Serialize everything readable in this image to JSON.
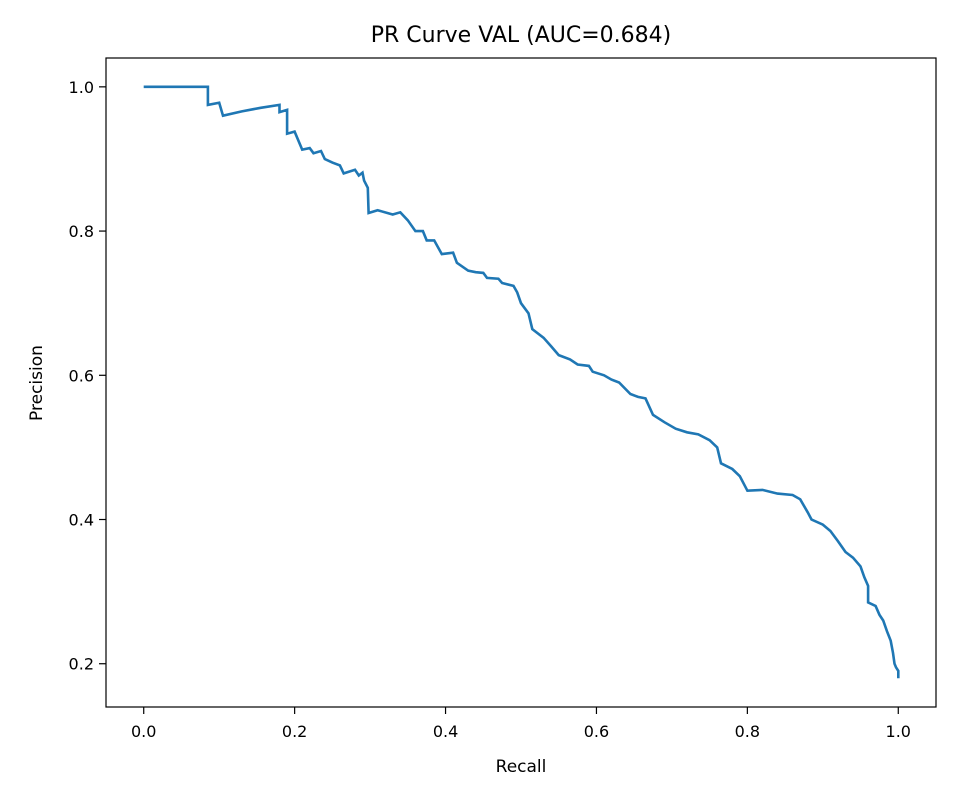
{
  "chart_data": {
    "type": "line",
    "title": "PR Curve VAL (AUC=0.684)",
    "xlabel": "Recall",
    "ylabel": "Precision",
    "xlim": [
      -0.05,
      1.05
    ],
    "ylim": [
      0.14,
      1.04
    ],
    "xticks": [
      0.0,
      0.2,
      0.4,
      0.6,
      0.8,
      1.0
    ],
    "xtick_labels": [
      "0.0",
      "0.2",
      "0.4",
      "0.6",
      "0.8",
      "1.0"
    ],
    "yticks": [
      0.2,
      0.4,
      0.6,
      0.8,
      1.0
    ],
    "ytick_labels": [
      "0.2",
      "0.4",
      "0.6",
      "0.8",
      "1.0"
    ],
    "grid": false,
    "series": [
      {
        "color": "#1f77b4",
        "points": [
          [
            0.0,
            1.0
          ],
          [
            0.085,
            1.0
          ],
          [
            0.085,
            0.975
          ],
          [
            0.1,
            0.978
          ],
          [
            0.105,
            0.96
          ],
          [
            0.13,
            0.966
          ],
          [
            0.155,
            0.971
          ],
          [
            0.18,
            0.975
          ],
          [
            0.18,
            0.965
          ],
          [
            0.19,
            0.968
          ],
          [
            0.19,
            0.935
          ],
          [
            0.2,
            0.938
          ],
          [
            0.21,
            0.913
          ],
          [
            0.22,
            0.915
          ],
          [
            0.225,
            0.908
          ],
          [
            0.235,
            0.911
          ],
          [
            0.24,
            0.9
          ],
          [
            0.25,
            0.895
          ],
          [
            0.26,
            0.891
          ],
          [
            0.265,
            0.88
          ],
          [
            0.28,
            0.885
          ],
          [
            0.285,
            0.877
          ],
          [
            0.29,
            0.881
          ],
          [
            0.292,
            0.87
          ],
          [
            0.297,
            0.86
          ],
          [
            0.298,
            0.825
          ],
          [
            0.31,
            0.829
          ],
          [
            0.33,
            0.823
          ],
          [
            0.34,
            0.826
          ],
          [
            0.35,
            0.815
          ],
          [
            0.36,
            0.8
          ],
          [
            0.37,
            0.8
          ],
          [
            0.375,
            0.787
          ],
          [
            0.385,
            0.787
          ],
          [
            0.395,
            0.768
          ],
          [
            0.41,
            0.77
          ],
          [
            0.415,
            0.756
          ],
          [
            0.43,
            0.745
          ],
          [
            0.44,
            0.743
          ],
          [
            0.45,
            0.742
          ],
          [
            0.455,
            0.735
          ],
          [
            0.47,
            0.734
          ],
          [
            0.475,
            0.728
          ],
          [
            0.49,
            0.724
          ],
          [
            0.495,
            0.715
          ],
          [
            0.5,
            0.7
          ],
          [
            0.51,
            0.686
          ],
          [
            0.515,
            0.664
          ],
          [
            0.53,
            0.652
          ],
          [
            0.54,
            0.64
          ],
          [
            0.55,
            0.628
          ],
          [
            0.565,
            0.622
          ],
          [
            0.575,
            0.615
          ],
          [
            0.59,
            0.613
          ],
          [
            0.595,
            0.605
          ],
          [
            0.61,
            0.6
          ],
          [
            0.62,
            0.594
          ],
          [
            0.63,
            0.59
          ],
          [
            0.645,
            0.574
          ],
          [
            0.655,
            0.57
          ],
          [
            0.665,
            0.568
          ],
          [
            0.675,
            0.545
          ],
          [
            0.69,
            0.535
          ],
          [
            0.705,
            0.526
          ],
          [
            0.72,
            0.521
          ],
          [
            0.735,
            0.518
          ],
          [
            0.75,
            0.51
          ],
          [
            0.76,
            0.5
          ],
          [
            0.765,
            0.478
          ],
          [
            0.78,
            0.47
          ],
          [
            0.79,
            0.46
          ],
          [
            0.8,
            0.44
          ],
          [
            0.82,
            0.441
          ],
          [
            0.84,
            0.436
          ],
          [
            0.86,
            0.434
          ],
          [
            0.87,
            0.428
          ],
          [
            0.88,
            0.41
          ],
          [
            0.885,
            0.4
          ],
          [
            0.9,
            0.393
          ],
          [
            0.91,
            0.384
          ],
          [
            0.92,
            0.37
          ],
          [
            0.93,
            0.355
          ],
          [
            0.94,
            0.347
          ],
          [
            0.95,
            0.335
          ],
          [
            0.955,
            0.32
          ],
          [
            0.96,
            0.308
          ],
          [
            0.96,
            0.285
          ],
          [
            0.97,
            0.28
          ],
          [
            0.975,
            0.268
          ],
          [
            0.98,
            0.26
          ],
          [
            0.985,
            0.245
          ],
          [
            0.99,
            0.232
          ],
          [
            0.993,
            0.215
          ],
          [
            0.995,
            0.2
          ],
          [
            0.997,
            0.195
          ],
          [
            1.0,
            0.19
          ],
          [
            1.0,
            0.18
          ]
        ]
      }
    ]
  }
}
